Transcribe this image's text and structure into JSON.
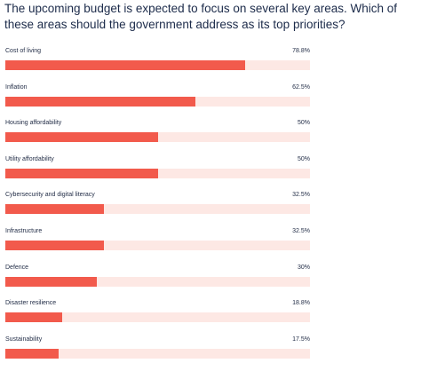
{
  "title": "The upcoming budget is expected to focus on several key areas. Which of these areas should the government address as its top priorities?",
  "colors": {
    "bar": "#f25a4c",
    "track": "#fde8e4",
    "text": "#1f2a44"
  },
  "chart_data": {
    "type": "bar",
    "orientation": "horizontal",
    "categories": [
      "Cost of living",
      "Inflation",
      "Housing affordability",
      "Utility affordability",
      "Cybersecurity and digital literacy",
      "Infrastructure",
      "Defence",
      "Disaster resilience",
      "Sustainability"
    ],
    "values": [
      78.8,
      62.5,
      50,
      50,
      32.5,
      32.5,
      30,
      18.8,
      17.5
    ],
    "value_labels": [
      "78.8%",
      "62.5%",
      "50%",
      "50%",
      "32.5%",
      "32.5%",
      "30%",
      "18.8%",
      "17.5%"
    ],
    "xlim": [
      0,
      100
    ],
    "grid": false,
    "legend": "none"
  }
}
